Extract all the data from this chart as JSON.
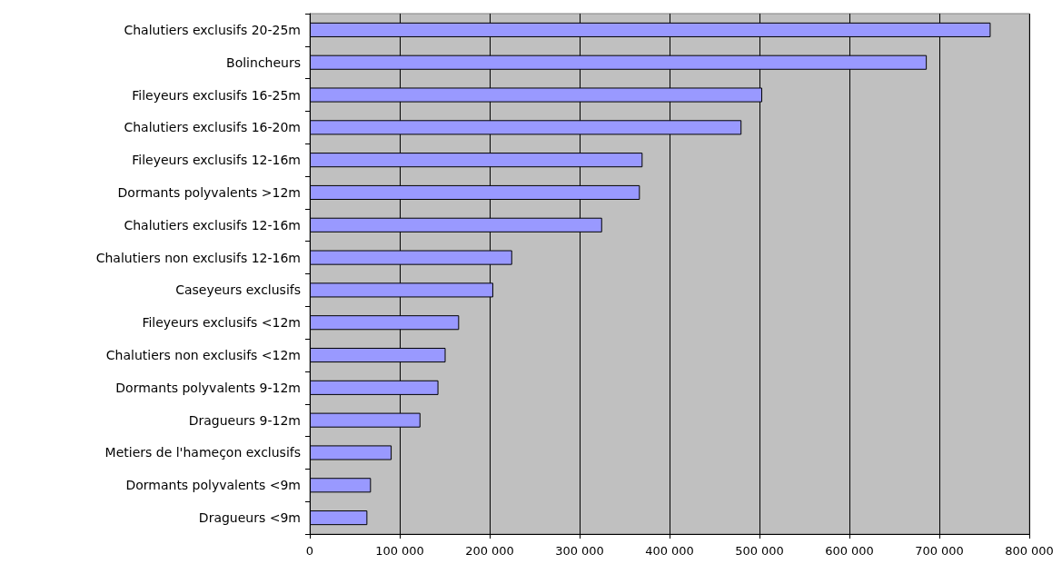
{
  "chart_data": {
    "type": "bar",
    "orientation": "horizontal",
    "categories": [
      "Chalutiers exclusifs 20-25m",
      "Bolincheurs",
      "Fileyeurs exclusifs 16-25m",
      "Chalutiers exclusifs 16-20m",
      "Fileyeurs exclusifs 12-16m",
      "Dormants polyvalents >12m",
      "Chalutiers exclusifs 12-16m",
      "Chalutiers non exclusifs 12-16m",
      "Caseyeurs exclusifs",
      "Fileyeurs exclusifs <12m",
      "Chalutiers non exclusifs <12m",
      "Dormants polyvalents 9-12m",
      "Dragueurs 9-12m",
      "Metiers de l'hameçon exclusifs",
      "Dormants polyvalents <9m",
      "Dragueurs <9m"
    ],
    "values": [
      757000,
      686000,
      503000,
      480000,
      370000,
      367000,
      325000,
      225000,
      204000,
      166000,
      151000,
      143000,
      123000,
      91000,
      68000,
      64000
    ],
    "color": "#9999ff",
    "xlim": [
      0,
      800000
    ],
    "xticks": [
      0,
      {
        "value": 100000,
        "label": "100 000"
      },
      {
        "value": 200000,
        "label": "200 000"
      },
      {
        "value": 300000,
        "label": "300 000"
      },
      {
        "value": 400000,
        "label": "400 000"
      },
      {
        "value": 500000,
        "label": "500 000"
      },
      {
        "value": 600000,
        "label": "600 000"
      },
      {
        "value": 700000,
        "label": "700 000"
      },
      {
        "value": 800000,
        "label": "800 000"
      }
    ],
    "grid": "x"
  }
}
